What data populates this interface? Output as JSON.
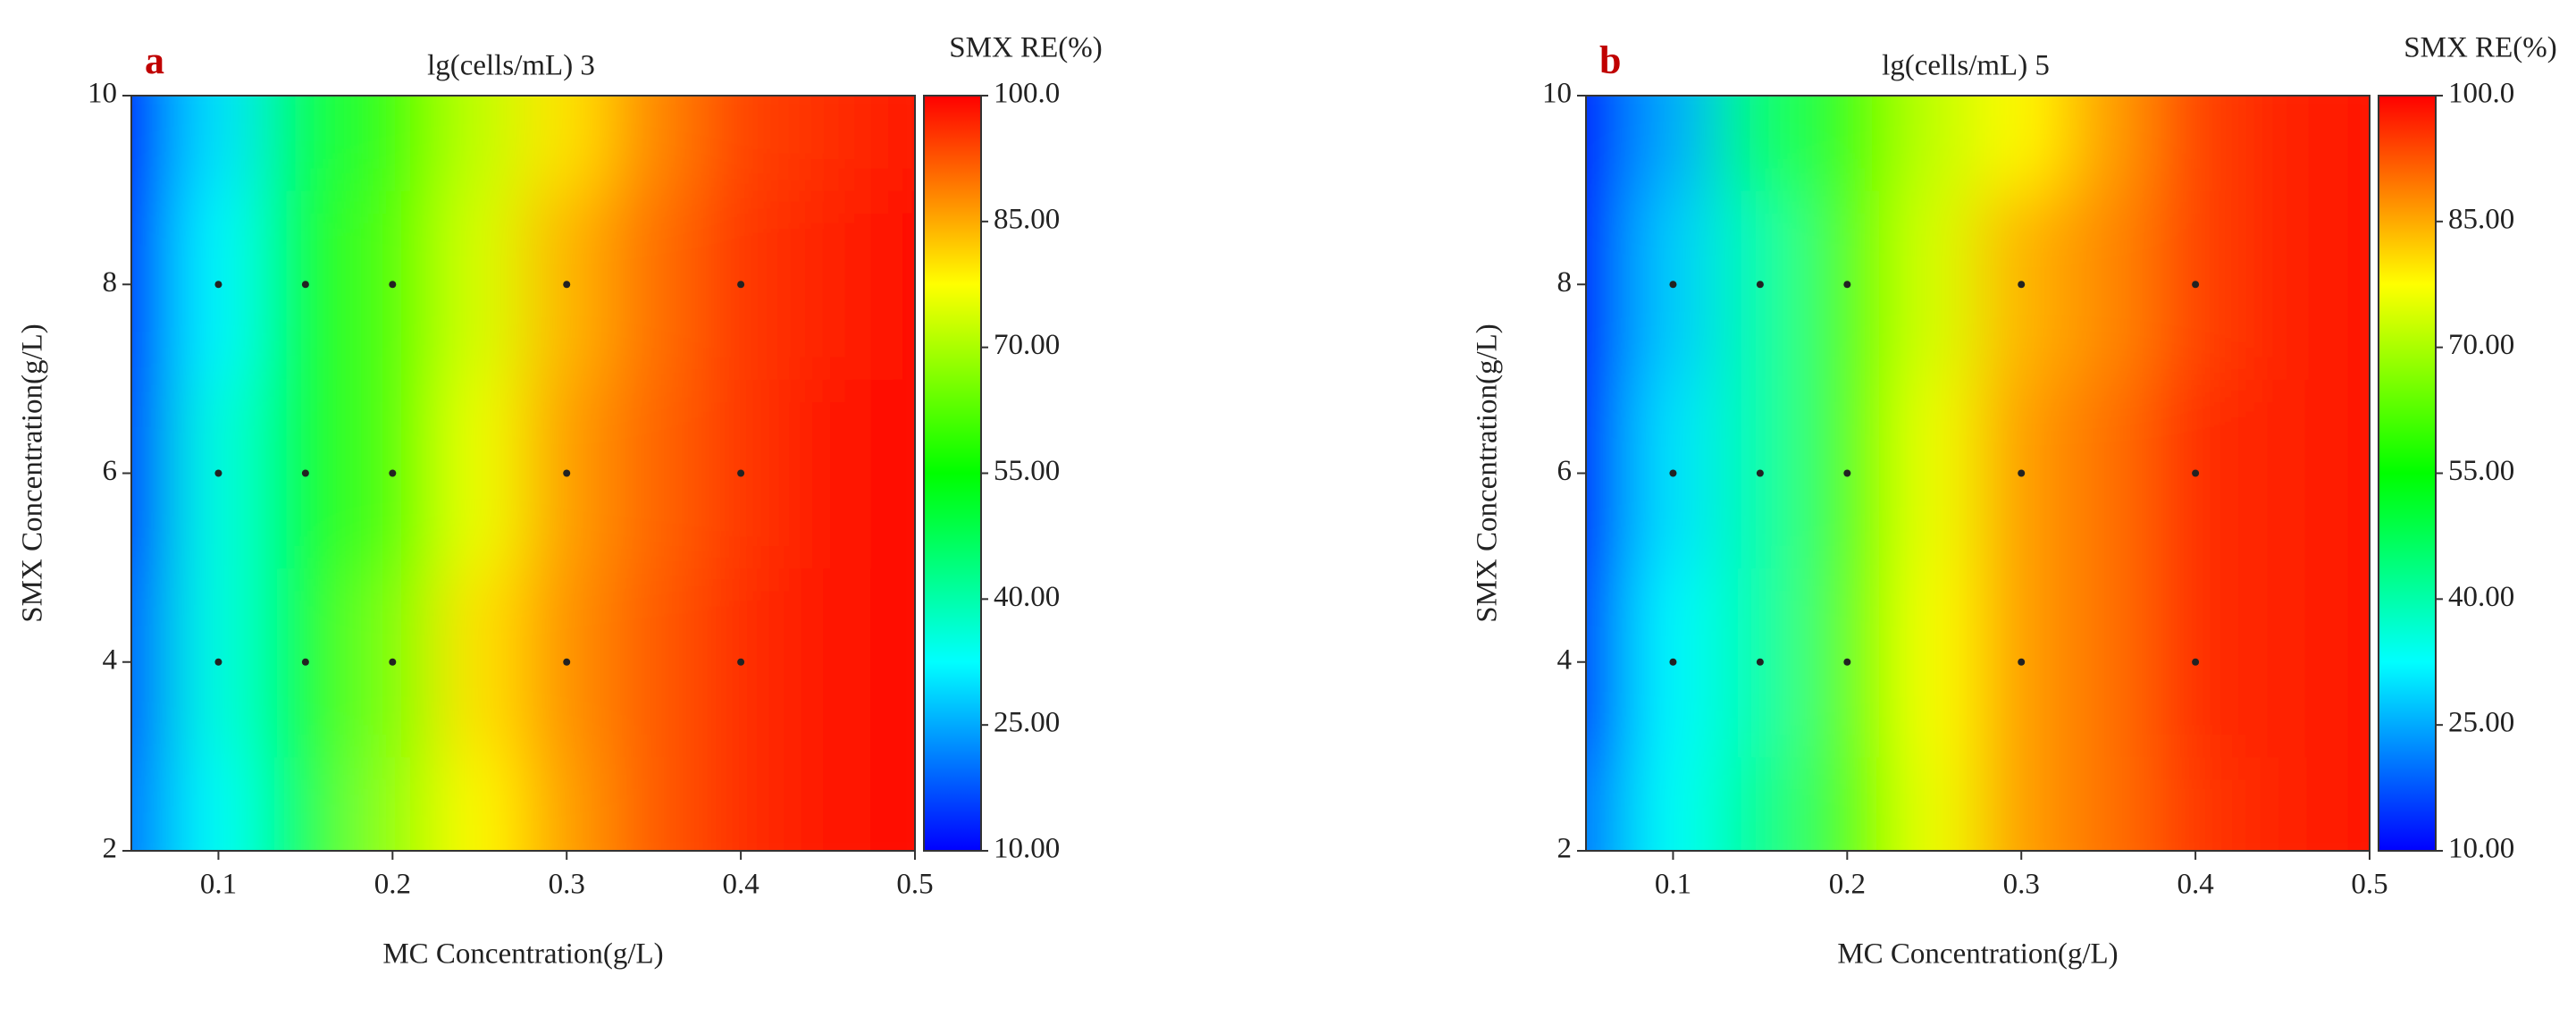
{
  "chart_data": [
    {
      "type": "contour",
      "panel": "a",
      "title": "lg(cells/mL)  3",
      "colorbar_title": "SMX RE(%)",
      "xlabel": "MC Concentration(g/L)",
      "ylabel": "SMX Concentration(g/L)",
      "x": [
        0.05,
        0.1,
        0.15,
        0.2,
        0.25,
        0.3,
        0.35,
        0.4,
        0.45,
        0.5
      ],
      "y": [
        2,
        4,
        6,
        8,
        10
      ],
      "z": [
        [
          20,
          33,
          48,
          68,
          78,
          86,
          92,
          96,
          98,
          99
        ],
        [
          18,
          35,
          50,
          66,
          80,
          87,
          92,
          96,
          98,
          99
        ],
        [
          15,
          35,
          50,
          62,
          76,
          86,
          91,
          95,
          98,
          99
        ],
        [
          13,
          32,
          50,
          62,
          74,
          84,
          90,
          95,
          97,
          99
        ],
        [
          10,
          30,
          48,
          60,
          72,
          80,
          88,
          94,
          96,
          98
        ]
      ],
      "points": {
        "x": [
          0.1,
          0.15,
          0.2,
          0.3,
          0.4,
          0.1,
          0.15,
          0.2,
          0.3,
          0.4,
          0.1,
          0.15,
          0.2,
          0.3,
          0.4
        ],
        "y": [
          4,
          4,
          4,
          4,
          4,
          6,
          6,
          6,
          6,
          6,
          8,
          8,
          8,
          8,
          8
        ]
      },
      "xlim": [
        0.05,
        0.5
      ],
      "xticks": [
        0.1,
        0.2,
        0.3,
        0.4,
        0.5
      ],
      "ylim": [
        2,
        10
      ],
      "yticks": [
        2,
        4,
        6,
        8,
        10
      ],
      "zlim": [
        10,
        100
      ],
      "zticks": [
        {
          "value": 10,
          "label": "10.00"
        },
        {
          "value": 25,
          "label": "25.00"
        },
        {
          "value": 40,
          "label": "40.00"
        },
        {
          "value": 55,
          "label": "55.00"
        },
        {
          "value": 70,
          "label": "70.00"
        },
        {
          "value": 85,
          "label": "85.00"
        },
        {
          "value": 100,
          "label": "100.0"
        }
      ],
      "colormap": [
        "#0000ff",
        "#00ffff",
        "#00ff00",
        "#ffff00",
        "#ff0000"
      ]
    },
    {
      "type": "contour",
      "panel": "b",
      "title": "lg(cells/mL)  5",
      "colorbar_title": "SMX RE(%)",
      "xlabel": "MC Concentration(g/L)",
      "ylabel": "SMX Concentration(g/L)",
      "x": [
        0.05,
        0.1,
        0.15,
        0.2,
        0.25,
        0.3,
        0.35,
        0.4,
        0.45,
        0.5
      ],
      "y": [
        2,
        4,
        6,
        8,
        10
      ],
      "z": [
        [
          20,
          33,
          42,
          62,
          76,
          86,
          90,
          95,
          97,
          98
        ],
        [
          15,
          32,
          40,
          63,
          77,
          86,
          90,
          96,
          97,
          98
        ],
        [
          12,
          30,
          40,
          62,
          76,
          86,
          90,
          96,
          97,
          98
        ],
        [
          10,
          28,
          40,
          62,
          74,
          84,
          88,
          94,
          97,
          98
        ],
        [
          10,
          25,
          45,
          60,
          72,
          78,
          86,
          94,
          97,
          98
        ]
      ],
      "points": {
        "x": [
          0.1,
          0.15,
          0.2,
          0.3,
          0.4,
          0.1,
          0.15,
          0.2,
          0.3,
          0.4,
          0.1,
          0.15,
          0.2,
          0.3,
          0.4
        ],
        "y": [
          4,
          4,
          4,
          4,
          4,
          6,
          6,
          6,
          6,
          6,
          8,
          8,
          8,
          8,
          8
        ]
      },
      "xlim": [
        0.05,
        0.5
      ],
      "xticks": [
        0.1,
        0.2,
        0.3,
        0.4,
        0.5
      ],
      "ylim": [
        2,
        10
      ],
      "yticks": [
        2,
        4,
        6,
        8,
        10
      ],
      "zlim": [
        10,
        100
      ],
      "zticks": [
        {
          "value": 10,
          "label": "10.00"
        },
        {
          "value": 25,
          "label": "25.00"
        },
        {
          "value": 40,
          "label": "40.00"
        },
        {
          "value": 55,
          "label": "55.00"
        },
        {
          "value": 70,
          "label": "70.00"
        },
        {
          "value": 85,
          "label": "85.00"
        },
        {
          "value": 100,
          "label": "100.0"
        }
      ],
      "colormap": [
        "#0000ff",
        "#00ffff",
        "#00ff00",
        "#ffff00",
        "#ff0000"
      ]
    }
  ]
}
